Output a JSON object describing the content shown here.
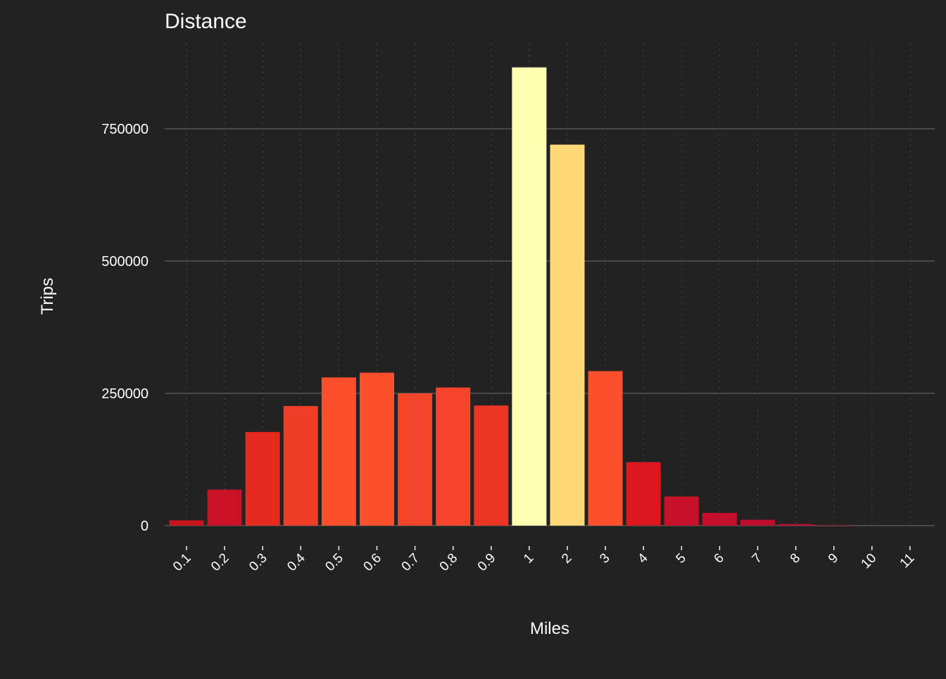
{
  "colors": {
    "background": "#222222",
    "grid_major": "#555555",
    "grid_minor": "#444444",
    "text": "#ffffff"
  },
  "chart_data": {
    "type": "bar",
    "title": "Distance",
    "xlabel": "Miles",
    "ylabel": "Trips",
    "categories": [
      "0.1",
      "0.2",
      "0.3",
      "0.4",
      "0.5",
      "0.6",
      "0.7",
      "0.8",
      "0.9",
      "1",
      "2",
      "3",
      "4",
      "5",
      "6",
      "7",
      "8",
      "9",
      "10",
      "11"
    ],
    "values": [
      10000,
      68000,
      177000,
      226000,
      280000,
      289000,
      250000,
      261000,
      227000,
      866000,
      720000,
      292000,
      120000,
      55000,
      24000,
      11000,
      3000,
      1000,
      0,
      0
    ],
    "bar_colors": [
      "#C8161E",
      "#CB1125",
      "#E52A20",
      "#F03D27",
      "#FC4E2A",
      "#FC4E2A",
      "#F4442A",
      "#F6452A",
      "#EB3424",
      "#FFFFB2",
      "#FED976",
      "#FC502C",
      "#DB1820",
      "#C8102A",
      "#C50F2A",
      "#BE0D2A",
      "#B80C2A",
      "#B30B2A",
      "#B10026",
      "#B10026"
    ],
    "ylim": [
      0,
      880000
    ],
    "yticks": [
      0,
      250000,
      500000,
      750000
    ],
    "ytick_labels": [
      "0",
      "250000",
      "500000",
      "750000"
    ],
    "grid": true
  }
}
